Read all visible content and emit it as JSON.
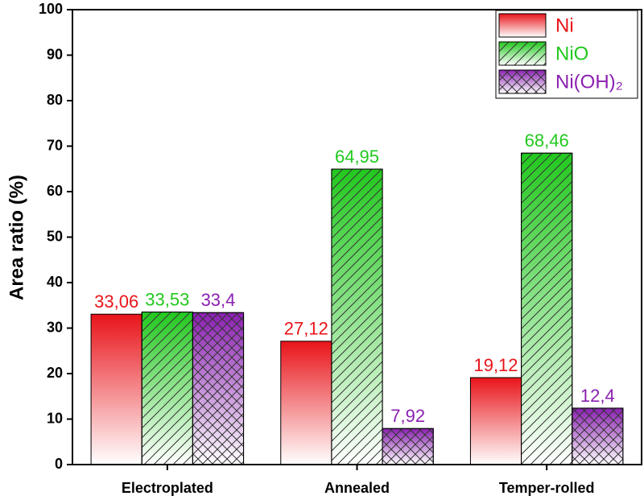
{
  "chart_data": {
    "type": "bar",
    "y_label": "Area ratio (%)",
    "categories": [
      "Electroplated",
      "Annealed",
      "Temper-rolled"
    ],
    "series": [
      {
        "name": "Ni",
        "color": "#e8141a",
        "pattern": "none",
        "values": [
          33.06,
          27.12,
          19.12
        ],
        "value_labels": [
          "33,06",
          "27,12",
          "19,12"
        ]
      },
      {
        "name": "NiO",
        "color": "#22c81e",
        "pattern": "diagonal",
        "values": [
          33.53,
          64.95,
          68.46
        ],
        "value_labels": [
          "33,53",
          "64,95",
          "68,46"
        ]
      },
      {
        "name": "Ni(OH)₂",
        "color": "#8a1fb0",
        "pattern": "cross",
        "values": [
          33.4,
          7.92,
          12.4
        ],
        "value_labels": [
          "33,4",
          "7,92",
          "12,4"
        ]
      }
    ],
    "ylim": [
      0,
      100
    ],
    "yticks": [
      0,
      10,
      20,
      30,
      40,
      50,
      60,
      70,
      80,
      90,
      100
    ],
    "legend": "upper-right"
  }
}
